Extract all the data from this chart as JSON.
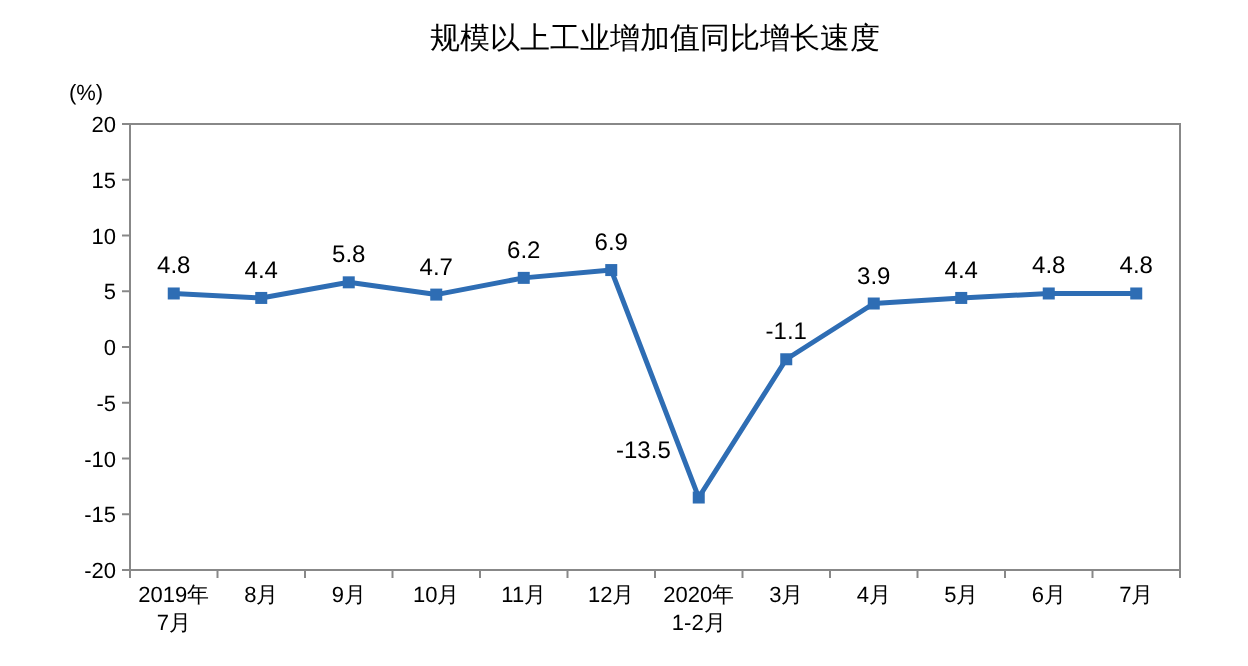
{
  "chart_data": {
    "type": "line",
    "title": "规模以上工业增加值同比增长速度",
    "ylabel": "(%)",
    "categories": [
      "2019年\n7月",
      "8月",
      "9月",
      "10月",
      "11月",
      "12月",
      "2020年\n1-2月",
      "3月",
      "4月",
      "5月",
      "6月",
      "7月"
    ],
    "series": [
      {
        "color": "#2e6db4",
        "values": [
          4.8,
          4.4,
          5.8,
          4.7,
          6.2,
          6.9,
          -13.5,
          -1.1,
          3.9,
          4.4,
          4.8,
          4.8
        ]
      }
    ],
    "ylim": [
      -20,
      20
    ],
    "yticks": [
      -20,
      -15,
      -10,
      -5,
      0,
      5,
      10,
      15,
      20
    ],
    "data_labels": true,
    "marker": "square",
    "line_style": "solid",
    "grid": false
  }
}
